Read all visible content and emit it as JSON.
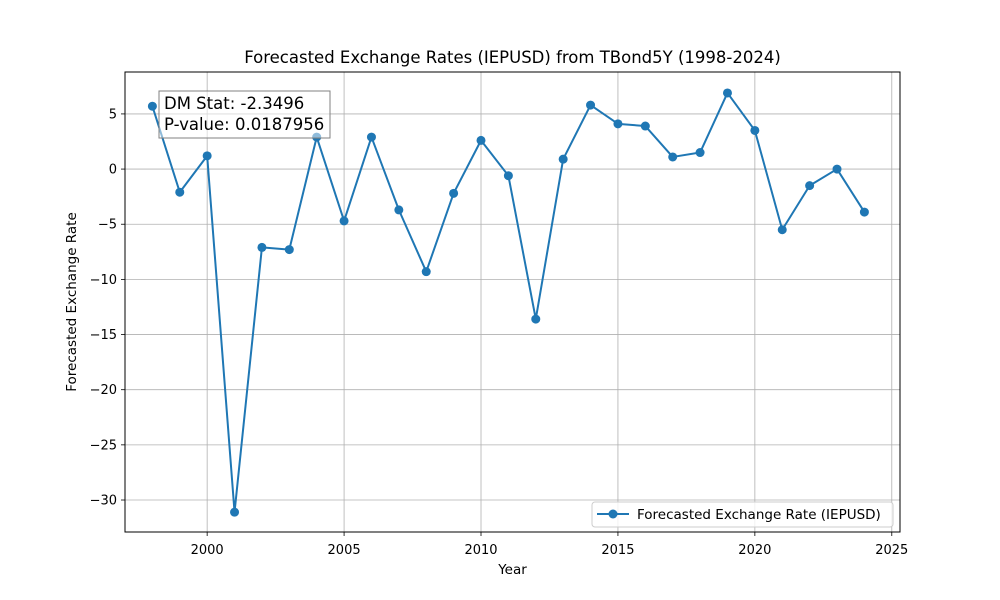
{
  "chart_data": {
    "type": "line",
    "title": "Forecasted Exchange Rates (IEPUSD) from TBond5Y (1998-2024)",
    "xlabel": "Year",
    "ylabel": "Forecasted Exchange Rate",
    "xlim": [
      1997,
      2025.3
    ],
    "ylim": [
      -32.9,
      8.8
    ],
    "xticks": [
      2000,
      2005,
      2010,
      2015,
      2020,
      2025
    ],
    "yticks": [
      5,
      0,
      -5,
      -10,
      -15,
      -20,
      -25,
      -30
    ],
    "xtick_labels": [
      "2000",
      "2005",
      "2010",
      "2015",
      "2020",
      "2025"
    ],
    "ytick_labels": [
      "5",
      "0",
      "−5",
      "−10",
      "−15",
      "−20",
      "−25",
      "−30"
    ],
    "grid": true,
    "legend_position": "lower-right",
    "series": [
      {
        "name": "Forecasted Exchange Rate (IEPUSD)",
        "color": "#1f77b4",
        "marker": "circle",
        "x": [
          1998,
          1999,
          2000,
          2001,
          2002,
          2003,
          2004,
          2005,
          2006,
          2007,
          2008,
          2009,
          2010,
          2011,
          2012,
          2013,
          2014,
          2015,
          2016,
          2017,
          2018,
          2019,
          2020,
          2021,
          2022,
          2023,
          2024
        ],
        "y": [
          5.7,
          -2.1,
          1.2,
          -31.1,
          -7.1,
          -7.3,
          2.9,
          -4.7,
          2.9,
          -3.7,
          -9.3,
          -2.2,
          2.6,
          -0.6,
          -13.6,
          0.9,
          5.8,
          4.1,
          3.9,
          1.1,
          1.5,
          6.9,
          3.5,
          -5.5,
          -1.5,
          0.0,
          -3.9
        ]
      }
    ],
    "annotation": {
      "lines": [
        "DM Stat: -2.3496",
        "P-value: 0.0187956"
      ]
    }
  }
}
